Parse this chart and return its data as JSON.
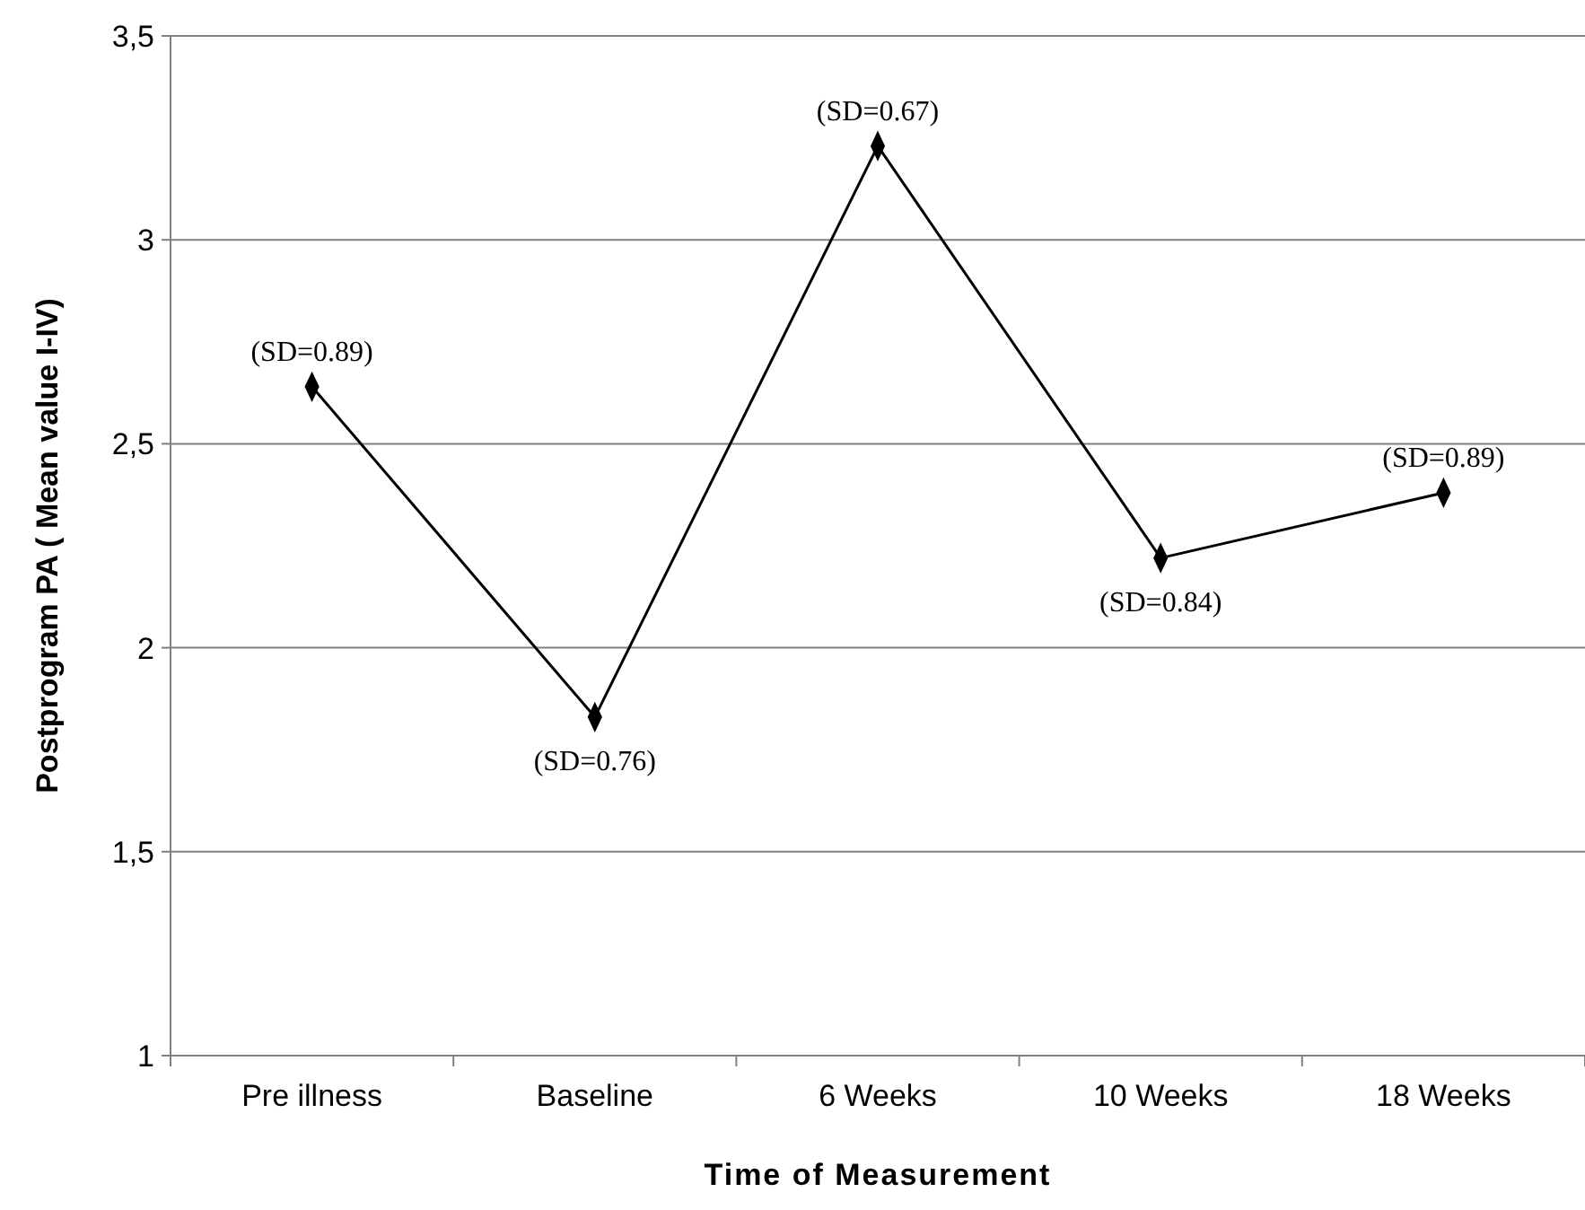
{
  "chart_data": {
    "type": "line",
    "xlabel": "Time of Measurement",
    "ylabel": "Postprogram PA ( Mean value I-IV)",
    "categories": [
      "Pre illness",
      "Baseline",
      "6 Weeks",
      "10 Weeks",
      "18 Weeks"
    ],
    "series": [
      {
        "color": "#000000",
        "values": [
          2.64,
          1.83,
          3.23,
          2.22,
          2.38
        ]
      }
    ],
    "ylim": [
      1,
      3.5
    ],
    "yticks": [
      {
        "value": 1,
        "label": "1"
      },
      {
        "value": 1.5,
        "label": "1,5"
      },
      {
        "value": 2,
        "label": "2"
      },
      {
        "value": 2.5,
        "label": "2,5"
      },
      {
        "value": 3,
        "label": "3"
      },
      {
        "value": 3.5,
        "label": "3,5"
      }
    ],
    "grid": "y",
    "marker": "diamond",
    "line_style": "solid",
    "annotations": [
      {
        "text": "(SD=0.89)",
        "x": "Pre illness",
        "y": 2.64
      },
      {
        "text": "(SD=0.76)",
        "x": "Baseline",
        "y": 1.83
      },
      {
        "text": "(SD=0.67)",
        "x": "6 Weeks",
        "y": 3.23
      },
      {
        "text": "(SD=0.84)",
        "x": "10 Weeks",
        "y": 2.22
      },
      {
        "text": "(SD=0.89)",
        "x": "18 Weeks",
        "y": 2.38
      }
    ]
  }
}
